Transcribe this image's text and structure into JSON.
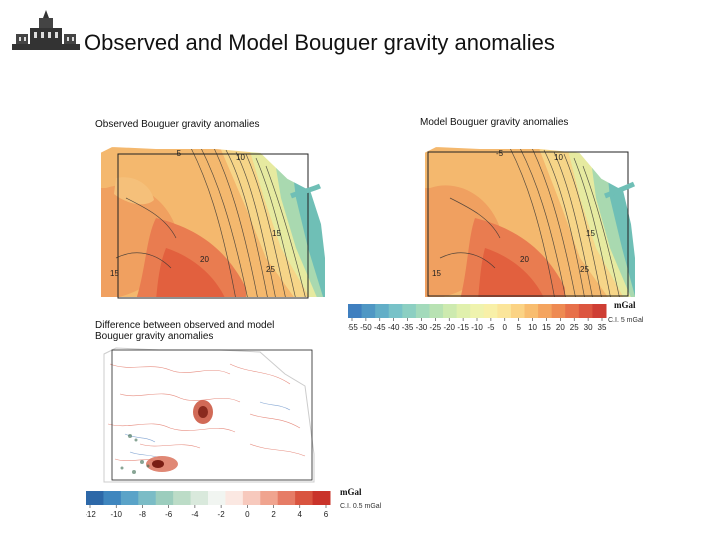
{
  "slide": {
    "title": "Observed and Model Bouguer gravity anomalies",
    "logo_icon": "university-building-icon"
  },
  "panels": {
    "observed": {
      "label": "Observed Bouguer gravity anomalies",
      "contour_labels": [
        "-5",
        "10",
        "15",
        "15",
        "20",
        "25"
      ]
    },
    "model": {
      "label": "Model Bouguer gravity anomalies",
      "contour_labels": [
        "-5",
        "10",
        "15",
        "15",
        "20",
        "25"
      ]
    },
    "difference": {
      "label_line1": "Difference between observed and model",
      "label_line2": "Bouguer gravity anomalies"
    }
  },
  "colorbar_top": {
    "ticks": [
      "-55",
      "-50",
      "-45",
      "-40",
      "-35",
      "-30",
      "-25",
      "-20",
      "-15",
      "-10",
      "-5",
      "0",
      "5",
      "10",
      "15",
      "20",
      "25",
      "30",
      "35"
    ],
    "unit": "mGal",
    "ci": "C.I. 5 mGal",
    "colors": [
      "#3f7fbf",
      "#4f97c4",
      "#62aec7",
      "#78c2c8",
      "#8ccfc2",
      "#a3dabb",
      "#b8e2b3",
      "#cdeaaf",
      "#e0f0ad",
      "#eff3ae",
      "#f8f0a8",
      "#fbe59a",
      "#fbd384",
      "#f8bd6f",
      "#f4a45f",
      "#ee8a52",
      "#e7704a",
      "#dc5640",
      "#ce3e34"
    ]
  },
  "colorbar_bottom": {
    "ticks": [
      "-12",
      "-10",
      "-8",
      "-6",
      "-4",
      "-2",
      "0",
      "2",
      "4",
      "6"
    ],
    "unit": "mGal",
    "ci": "C.I. 0.5 mGal",
    "colors": [
      "#2d68a8",
      "#3f86be",
      "#5aa3c8",
      "#7bbcc6",
      "#9ccdbd",
      "#bcdcc7",
      "#d9e9dc",
      "#f1f5f1",
      "#fbe8e2",
      "#f7c9bd",
      "#f0a48f",
      "#e67c66",
      "#d9543f",
      "#c9332a"
    ]
  },
  "colors": {
    "orange_core": "#e8764e",
    "orange_mid": "#f0a060",
    "yellow": "#f6cf80",
    "green": "#a9d9b0",
    "teal": "#5fb6b8"
  }
}
